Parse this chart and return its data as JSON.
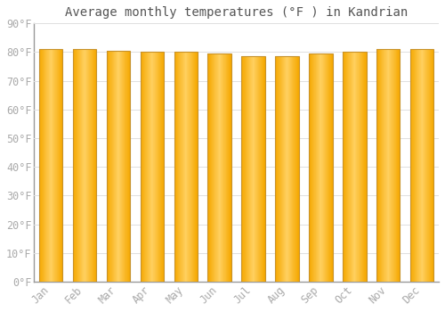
{
  "title": "Average monthly temperatures (°F ) in Kandrian",
  "months": [
    "Jan",
    "Feb",
    "Mar",
    "Apr",
    "May",
    "Jun",
    "Jul",
    "Aug",
    "Sep",
    "Oct",
    "Nov",
    "Dec"
  ],
  "temperatures": [
    81,
    81,
    80.5,
    80,
    80,
    79.5,
    78.5,
    78.5,
    79.5,
    80,
    81,
    81
  ],
  "ylim": [
    0,
    90
  ],
  "bar_color_center": "#FFD060",
  "bar_color_edge": "#F5A800",
  "bar_edge_color": "#C8922A",
  "bg_color": "#FFFFFF",
  "plot_bg_color": "#FFFFFF",
  "grid_color": "#E0E0E0",
  "title_fontsize": 10,
  "tick_fontsize": 8.5,
  "tick_color": "#AAAAAA",
  "spine_color": "#999999"
}
